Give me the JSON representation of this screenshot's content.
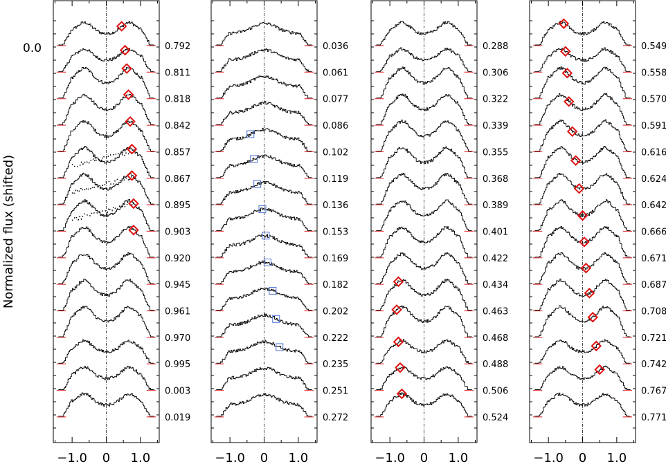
{
  "chart_data": {
    "type": "line",
    "ylabel": "Normalized flux (shifted)",
    "y_zero_label": "0.0",
    "x_tick_labels": [
      "−1.0",
      "0",
      "1.0"
    ],
    "x_ticks": [
      -1.0,
      0,
      1.0
    ],
    "xlim": [
      -1.55,
      1.55
    ],
    "colors": {
      "profile": "#000000",
      "continuum": "#e8474a",
      "diamond": "#e01010",
      "square": "#4a6fd6",
      "axis": "#000000"
    },
    "panels": [
      {
        "phases": [
          "0.792",
          "0.811",
          "0.818",
          "0.842",
          "0.857",
          "0.867",
          "0.895",
          "0.903",
          "0.920",
          "0.945",
          "0.961",
          "0.970",
          "0.995",
          "0.003",
          "0.019"
        ],
        "profile_shape": "double-peak",
        "diamond_positions": [
          0.45,
          0.55,
          0.6,
          0.65,
          0.7,
          0.75,
          0.75,
          0.8,
          0.8,
          null,
          null,
          null,
          null,
          null,
          null
        ],
        "dotted_overlays": [
          false,
          false,
          false,
          false,
          false,
          true,
          true,
          true,
          false,
          false,
          false,
          false,
          false,
          false,
          false
        ]
      },
      {
        "phases": [
          "0.036",
          "0.061",
          "0.077",
          "0.086",
          "0.102",
          "0.119",
          "0.136",
          "0.153",
          "0.169",
          "0.182",
          "0.202",
          "0.222",
          "0.235",
          "0.251",
          "0.272"
        ],
        "profile_shape": "single-peak",
        "square_positions": [
          null,
          null,
          null,
          null,
          -0.4,
          -0.3,
          -0.2,
          -0.05,
          0.05,
          0.1,
          0.25,
          0.35,
          0.45,
          null,
          null
        ]
      },
      {
        "phases": [
          "0.288",
          "0.306",
          "0.322",
          "0.339",
          "0.355",
          "0.368",
          "0.389",
          "0.401",
          "0.422",
          "0.434",
          "0.463",
          "0.468",
          "0.488",
          "0.506",
          "0.524"
        ],
        "profile_shape": "double-peak",
        "diamond_positions": [
          null,
          null,
          null,
          null,
          null,
          null,
          null,
          null,
          null,
          null,
          -0.75,
          -0.8,
          -0.75,
          -0.7,
          -0.65
        ]
      },
      {
        "phases": [
          "0.549",
          "0.558",
          "0.570",
          "0.591",
          "0.616",
          "0.624",
          "0.642",
          "0.666",
          "0.671",
          "0.687",
          "0.708",
          "0.721",
          "0.742",
          "0.767",
          "0.771"
        ],
        "profile_shape": "double-peak",
        "diamond_positions": [
          -0.55,
          -0.5,
          -0.45,
          -0.4,
          -0.3,
          -0.2,
          -0.1,
          0.0,
          0.05,
          0.1,
          0.2,
          0.3,
          0.4,
          0.5,
          null
        ]
      }
    ]
  }
}
